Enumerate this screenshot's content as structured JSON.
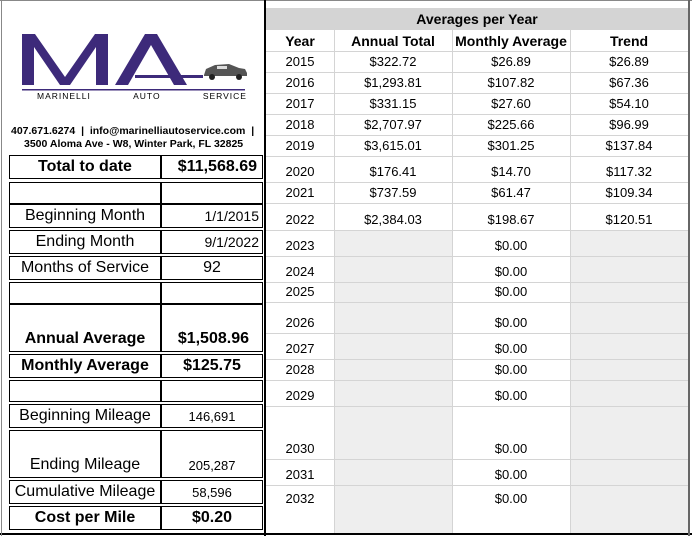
{
  "company": {
    "logo_text": "MA",
    "logo_words": [
      "Marinelli",
      "Auto",
      "Service"
    ],
    "phone_email": "407.671.6274  |  info@marinelliautoservice.com  |",
    "address": "3500 Aloma Ave - W8, Winter Park, FL 32825",
    "brand_color": "#3d2a7a"
  },
  "summary": {
    "total_to_date_label": "Total to date",
    "total_to_date_value": "$11,568.69",
    "beginning_month_label": "Beginning Month",
    "beginning_month_value": "1/1/2015",
    "ending_month_label": "Ending Month",
    "ending_month_value": "9/1/2022",
    "months_of_service_label": "Months of Service",
    "months_of_service_value": "92",
    "annual_average_label": "Annual Average",
    "annual_average_value": "$1,508.96",
    "monthly_average_label": "Monthly Average",
    "monthly_average_value": "$125.75",
    "beginning_mileage_label": "Beginning Mileage",
    "beginning_mileage_value": "146,691",
    "ending_mileage_label": "Ending Mileage",
    "ending_mileage_value": "205,287",
    "cumulative_mileage_label": "Cumulative Mileage",
    "cumulative_mileage_value": "58,596",
    "cost_per_mile_label": "Cost per Mile",
    "cost_per_mile_value": "$0.20"
  },
  "averages": {
    "title": "Averages per Year",
    "columns": [
      "Year",
      "Annual Total",
      "Monthly Average",
      "Trend"
    ],
    "rows": [
      {
        "year": "2015",
        "annual": "$322.72",
        "monthly": "$26.89",
        "trend": "$26.89"
      },
      {
        "year": "2016",
        "annual": "$1,293.81",
        "monthly": "$107.82",
        "trend": "$67.36"
      },
      {
        "year": "2017",
        "annual": "$331.15",
        "monthly": "$27.60",
        "trend": "$54.10"
      },
      {
        "year": "2018",
        "annual": "$2,707.97",
        "monthly": "$225.66",
        "trend": "$96.99"
      },
      {
        "year": "2019",
        "annual": "$3,615.01",
        "monthly": "$301.25",
        "trend": "$137.84"
      },
      {
        "year": "2020",
        "annual": "$176.41",
        "monthly": "$14.70",
        "trend": "$117.32"
      },
      {
        "year": "2021",
        "annual": "$737.59",
        "monthly": "$61.47",
        "trend": "$109.34"
      },
      {
        "year": "2022",
        "annual": "$2,384.03",
        "monthly": "$198.67",
        "trend": "$120.51"
      },
      {
        "year": "2023",
        "annual": "",
        "monthly": "$0.00",
        "trend": ""
      },
      {
        "year": "2024",
        "annual": "",
        "monthly": "$0.00",
        "trend": ""
      },
      {
        "year": "2025",
        "annual": "",
        "monthly": "$0.00",
        "trend": ""
      },
      {
        "year": "2026",
        "annual": "",
        "monthly": "$0.00",
        "trend": ""
      },
      {
        "year": "2027",
        "annual": "",
        "monthly": "$0.00",
        "trend": ""
      },
      {
        "year": "2028",
        "annual": "",
        "monthly": "$0.00",
        "trend": ""
      },
      {
        "year": "2029",
        "annual": "",
        "monthly": "$0.00",
        "trend": ""
      },
      {
        "year": "2030",
        "annual": "",
        "monthly": "$0.00",
        "trend": ""
      },
      {
        "year": "2031",
        "annual": "",
        "monthly": "$0.00",
        "trend": ""
      },
      {
        "year": "2032",
        "annual": "",
        "monthly": "$0.00",
        "trend": ""
      }
    ]
  }
}
